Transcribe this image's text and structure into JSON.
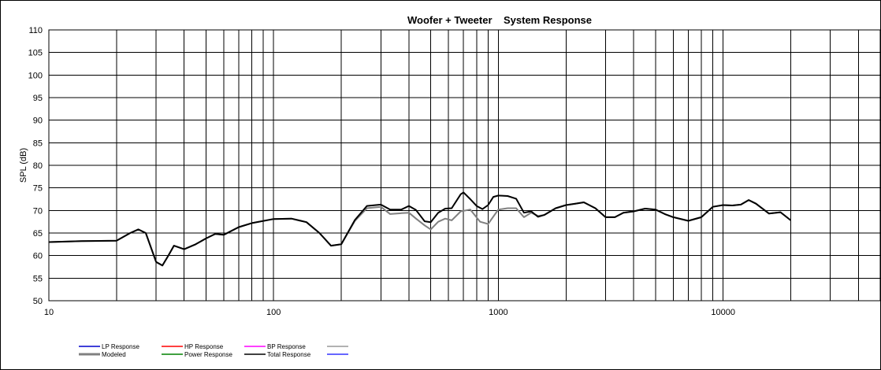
{
  "chart_data": {
    "type": "line",
    "title": "Woofer + Tweeter    System Response",
    "xlabel": "",
    "ylabel": "SPL (dB)",
    "x_scale": "log",
    "xlim": [
      10,
      50000
    ],
    "ylim": [
      50,
      110
    ],
    "x_ticks": [
      10,
      100,
      1000,
      10000
    ],
    "y_ticks": [
      50,
      55,
      60,
      65,
      70,
      75,
      80,
      85,
      90,
      95,
      100,
      105,
      110
    ],
    "grid": true,
    "legend_position": "bottom",
    "legend": [
      {
        "name": "LP Response",
        "color": "#0000cc"
      },
      {
        "name": "HP Response",
        "color": "#ff0000"
      },
      {
        "name": "BP Response",
        "color": "#ff00ff"
      },
      {
        "name": "",
        "color": "#999999"
      },
      {
        "name": "Modeled",
        "color": "#808080"
      },
      {
        "name": "Power Response",
        "color": "#008000"
      },
      {
        "name": "Total Response",
        "color": "#000000"
      },
      {
        "name": "",
        "color": "#3333ff"
      }
    ],
    "series": [
      {
        "name": "Modeled",
        "color": "#808080",
        "x": [
          10,
          14,
          20,
          23,
          25,
          27,
          30,
          32,
          34,
          36,
          40,
          45,
          50,
          55,
          60,
          70,
          80,
          100,
          120,
          140,
          160,
          180,
          200,
          230,
          260,
          300,
          330,
          370,
          400,
          430,
          470,
          500,
          540,
          580,
          620,
          680,
          750,
          830,
          900,
          1000,
          1100,
          1200,
          1300,
          1400,
          1500,
          1600,
          1800,
          2000,
          2200,
          2400,
          2700,
          3000,
          3300,
          3600,
          4000,
          4500,
          5000,
          5500,
          6000,
          7000,
          8000,
          9000,
          10000,
          11000,
          12000,
          13000,
          14000,
          16000,
          18000,
          20000
        ],
        "y": [
          63,
          63.2,
          63.3,
          65,
          65.8,
          65,
          58.6,
          57.8,
          60,
          62.2,
          61.4,
          62.5,
          63.8,
          64.8,
          64.6,
          66.3,
          67.2,
          68.1,
          68.2,
          67.4,
          65,
          62.2,
          62.5,
          67.7,
          70.5,
          70.8,
          69.2,
          69.4,
          69.5,
          68.2,
          66.7,
          65.8,
          67.5,
          68.2,
          67.8,
          69.8,
          70.2,
          67.5,
          67,
          70.2,
          70.5,
          70.5,
          68.5,
          69.5,
          68.8,
          69,
          70.5,
          71.2,
          71.5,
          71.8,
          70.5,
          68.5,
          68.5,
          69.5,
          69.8,
          70.4,
          70.2,
          69.2,
          68.5,
          67.7,
          68.5,
          70.8,
          71.2,
          71.1,
          71.3,
          72.3,
          71.5,
          69.3,
          69.6,
          67.8
        ]
      },
      {
        "name": "Total Response",
        "color": "#000000",
        "x": [
          10,
          14,
          20,
          23,
          25,
          27,
          30,
          32,
          34,
          36,
          40,
          45,
          50,
          55,
          60,
          70,
          80,
          100,
          120,
          140,
          160,
          180,
          200,
          230,
          260,
          300,
          330,
          370,
          400,
          430,
          470,
          500,
          540,
          580,
          620,
          680,
          700,
          750,
          800,
          850,
          900,
          950,
          1000,
          1100,
          1200,
          1300,
          1400,
          1500,
          1600,
          1800,
          2000,
          2200,
          2400,
          2700,
          3000,
          3300,
          3600,
          4000,
          4500,
          5000,
          5500,
          6000,
          7000,
          8000,
          9000,
          10000,
          11000,
          12000,
          13000,
          14000,
          16000,
          18000,
          20000
        ],
        "y": [
          63,
          63.2,
          63.3,
          65,
          65.8,
          65,
          58.6,
          57.8,
          60,
          62.2,
          61.4,
          62.5,
          63.8,
          64.8,
          64.6,
          66.3,
          67.2,
          68.1,
          68.2,
          67.4,
          65,
          62.2,
          62.5,
          67.9,
          71,
          71.3,
          70.2,
          70.2,
          71,
          70.1,
          67.6,
          67.4,
          69.5,
          70.4,
          70.5,
          73.6,
          74,
          72.5,
          71,
          70.3,
          71.2,
          73,
          73.3,
          73.2,
          72.6,
          69.5,
          69.8,
          68.6,
          69,
          70.5,
          71.2,
          71.5,
          71.8,
          70.5,
          68.5,
          68.5,
          69.5,
          69.8,
          70.4,
          70.2,
          69.2,
          68.5,
          67.7,
          68.5,
          70.8,
          71.2,
          71.1,
          71.3,
          72.3,
          71.5,
          69.3,
          69.6,
          67.8
        ]
      }
    ]
  }
}
